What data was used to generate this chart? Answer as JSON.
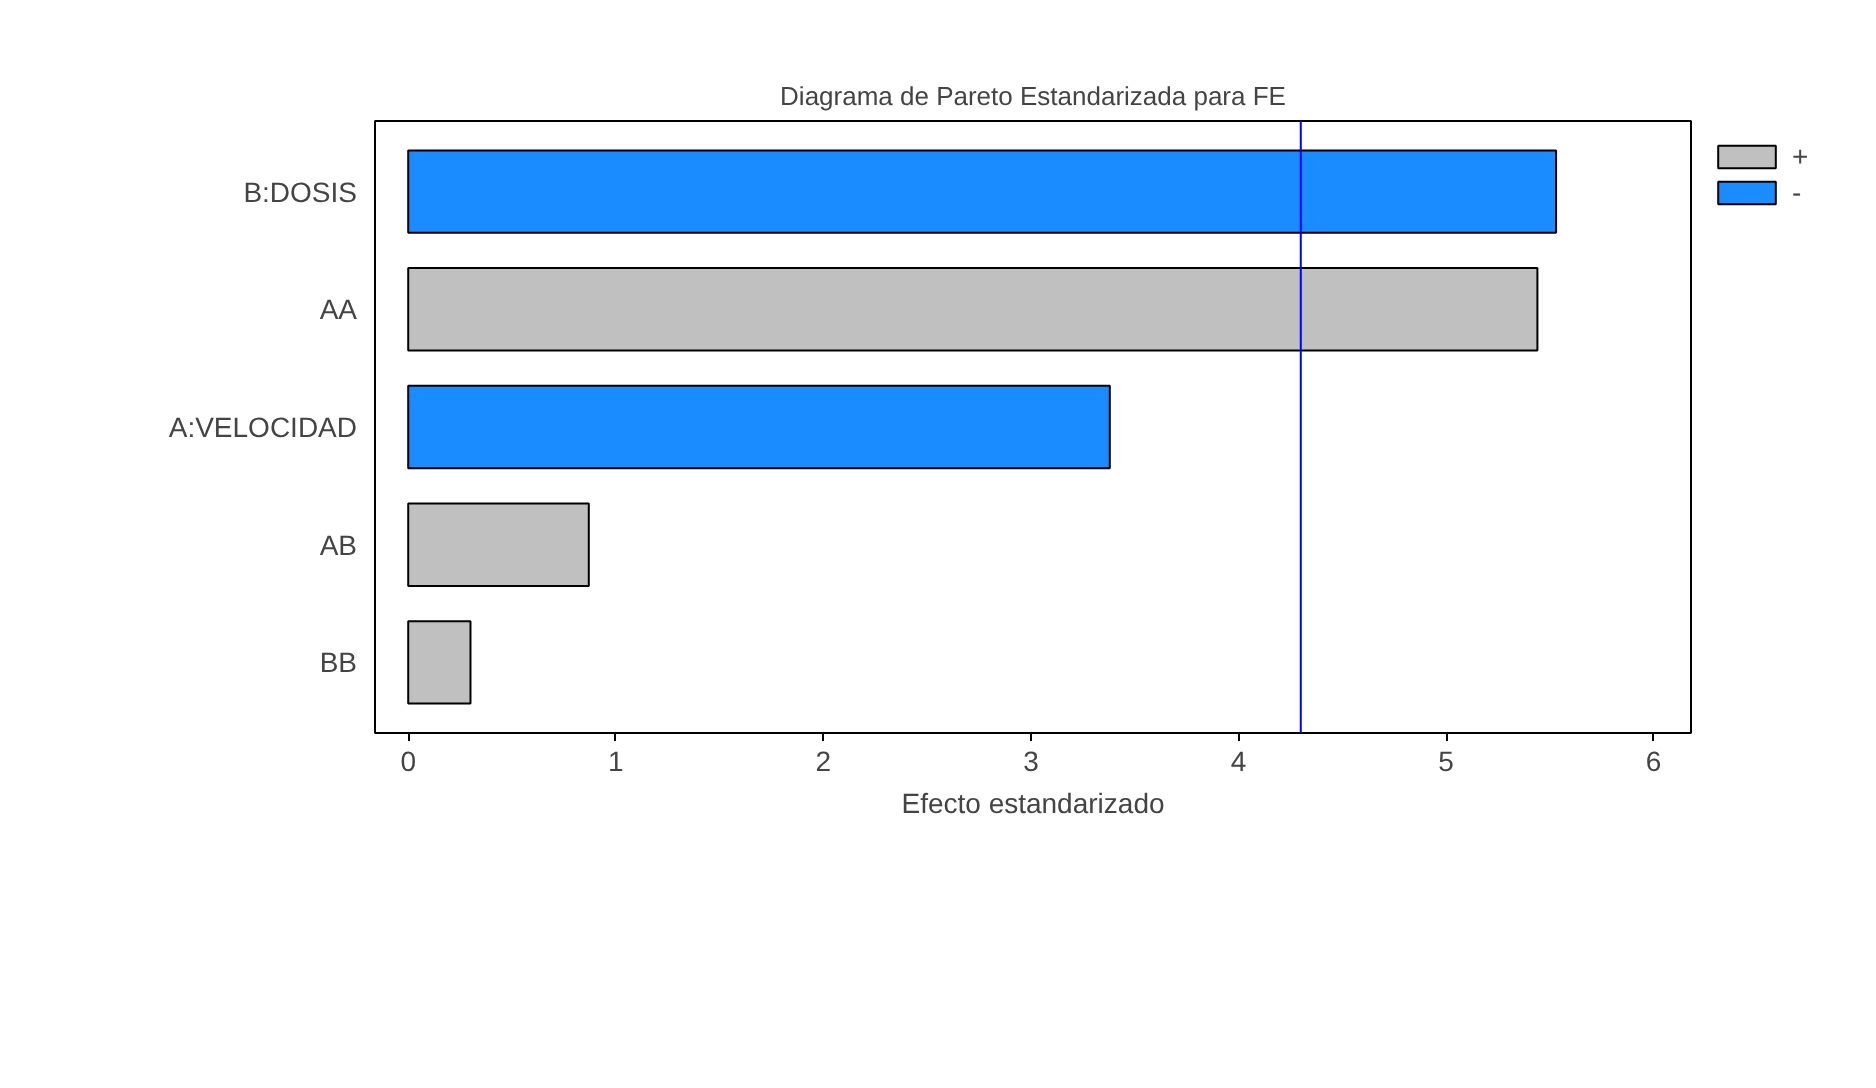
{
  "chart_data": {
    "type": "bar",
    "orientation": "horizontal",
    "title": "Diagrama de Pareto Estandarizada para FE",
    "xlabel": "Efecto estandarizado",
    "categories": [
      "B:DOSIS",
      "AA",
      "A:VELOCIDAD",
      "AB",
      "BB"
    ],
    "series": [
      {
        "name": "+",
        "color": "#c0c0c0",
        "values": [
          null,
          5.44,
          null,
          0.87,
          0.3
        ]
      },
      {
        "name": "-",
        "color": "#1a8cff",
        "values": [
          5.53,
          null,
          3.38,
          null,
          null
        ]
      }
    ],
    "xlim": [
      -0.16,
      6.18
    ],
    "xticks": [
      0,
      1,
      2,
      3,
      4,
      5,
      6
    ],
    "ref_lines": [
      {
        "axis": "x",
        "value": 4.3,
        "color": "#0000ff"
      }
    ],
    "grid": false,
    "legend": "right"
  }
}
